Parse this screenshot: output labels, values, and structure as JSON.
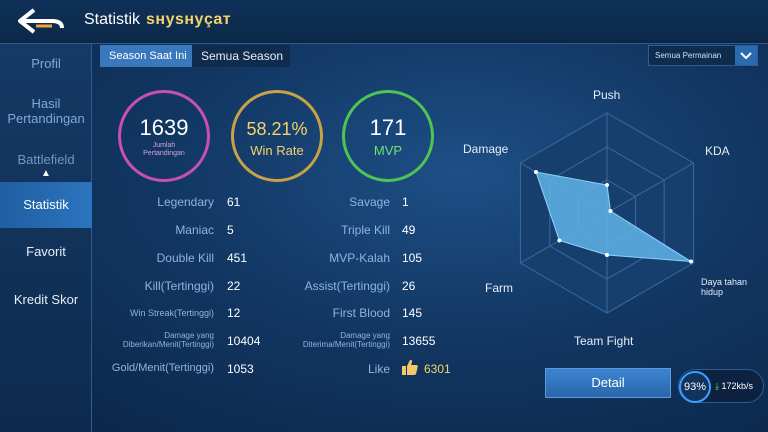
{
  "header": {
    "title": "Statistik",
    "username": "sнysнyçaт"
  },
  "sidebar": {
    "items": [
      {
        "label": "Profil"
      },
      {
        "label": "Hasil Pertandingan"
      },
      {
        "label": "Battlefield"
      },
      {
        "label": "Statistik"
      },
      {
        "label": "Favorit"
      },
      {
        "label": "Kredit Skor"
      }
    ]
  },
  "tabs": {
    "current": "Season Saat Ini",
    "all": "Semua Season"
  },
  "filter": {
    "value": "Semua Permainan"
  },
  "summary": {
    "matches": {
      "value": "1639",
      "label": "Jumlah Pertandingan"
    },
    "winrate": {
      "value": "58.21%",
      "label": "Win Rate"
    },
    "mvp": {
      "value": "171",
      "label": "MVP"
    }
  },
  "stats_left": [
    {
      "label": "Legendary",
      "value": "61"
    },
    {
      "label": "Maniac",
      "value": "5"
    },
    {
      "label": "Double Kill",
      "value": "451"
    },
    {
      "label": "Kill(Tertinggi)",
      "value": "22"
    },
    {
      "label": "Win Streak(Tertinggi)",
      "value": "12"
    },
    {
      "label": "Damage yang Diberikan/Menit(Tertinggi)",
      "value": "10404"
    },
    {
      "label": "Gold/Menit(Tertinggi)",
      "value": "1053"
    }
  ],
  "stats_right": [
    {
      "label": "Savage",
      "value": "1"
    },
    {
      "label": "Triple Kill",
      "value": "49"
    },
    {
      "label": "MVP-Kalah",
      "value": "105"
    },
    {
      "label": "Assist(Tertinggi)",
      "value": "26"
    },
    {
      "label": "First Blood",
      "value": "145"
    },
    {
      "label": "Damage yang Diterima/Menit(Tertinggi)",
      "value": "13655"
    },
    {
      "label": "Like",
      "value": "6301"
    }
  ],
  "radar": {
    "labels": {
      "push": "Push",
      "kda": "KDA",
      "daya": "Daya tahan hidup",
      "teamfight": "Team Fight",
      "farm": "Farm",
      "damage": "Damage"
    },
    "values": {
      "push": 0.28,
      "kda": 0.0,
      "daya": 0.97,
      "teamfight": 0.42,
      "farm": 0.55,
      "damage": 0.82
    }
  },
  "detail_label": "Detail",
  "network": {
    "battery": "93%",
    "speed": "172kb/s"
  },
  "colors": {
    "accent": "#3a78bd",
    "gold": "#f3d36a",
    "green": "#4fc454",
    "pink": "#c94fb7"
  }
}
